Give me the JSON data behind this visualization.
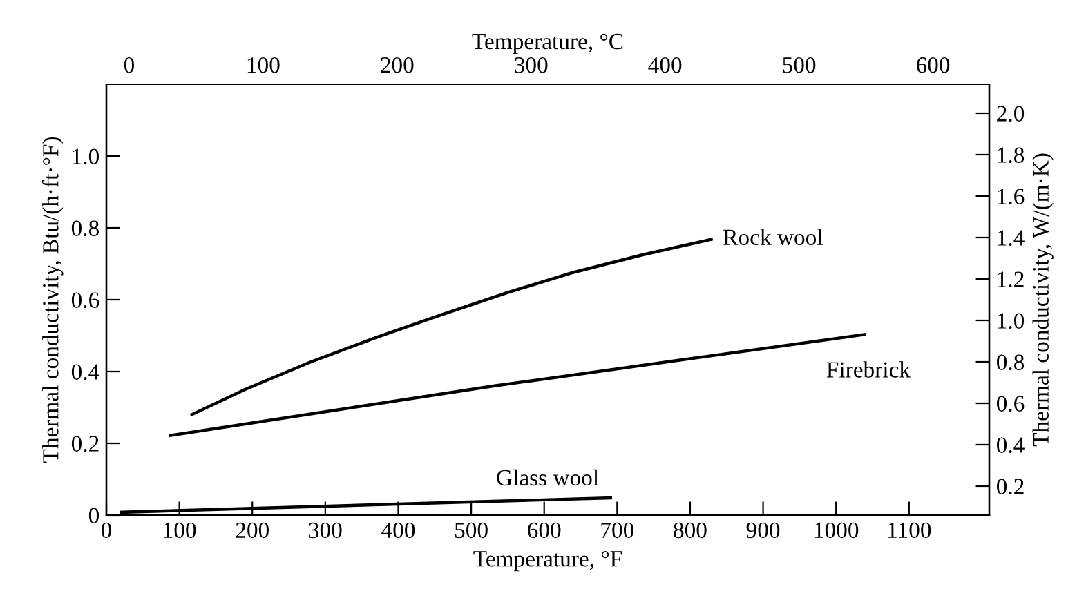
{
  "chart_data": {
    "type": "line",
    "xlabel": "Temperature, °F",
    "ylabel": "Thermal conductivity, Btu/(h·ft·°F)",
    "y2label": "Thermal conductivity, W/(m·K)",
    "x2label": "Temperature, °C",
    "series": [
      {
        "name": "Rock wool",
        "color": "#000000",
        "x": [
          117,
          190,
          278,
          370,
          459,
          550,
          640,
          735,
          829
        ],
        "values": [
          0.28,
          0.35,
          0.425,
          0.495,
          0.558,
          0.62,
          0.676,
          0.725,
          0.768
        ]
      },
      {
        "name": "Firebrick",
        "color": "#000000",
        "x": [
          88,
          532,
          1039
        ],
        "values": [
          0.222,
          0.36,
          0.503
        ]
      },
      {
        "name": "Glass wool",
        "color": "#000000",
        "x": [
          21,
          691
        ],
        "values": [
          0.008,
          0.048
        ]
      }
    ],
    "xlim": [
      0,
      1210
    ],
    "xticks": [
      0,
      100,
      200,
      300,
      400,
      500,
      600,
      700,
      800,
      900,
      1000,
      1100
    ],
    "ylim": [
      0,
      1.2
    ],
    "yticks": [
      0,
      0.2,
      0.4,
      0.6,
      0.8,
      {
        "value": 1,
        "label": "1.0"
      }
    ],
    "x2lim": [
      -17,
      642
    ],
    "x2ticks": [
      0,
      100,
      200,
      300,
      400,
      500,
      600
    ],
    "y2lim": [
      0.06,
      2.14
    ],
    "y2ticks": [
      0.2,
      0.4,
      0.6,
      0.8,
      {
        "value": 1,
        "label": "1.0"
      },
      1.2,
      1.4,
      1.6,
      1.8,
      {
        "value": 2,
        "label": "2.0"
      }
    ],
    "grid": false,
    "legend": false,
    "marker": "none",
    "line_style": "solid"
  }
}
